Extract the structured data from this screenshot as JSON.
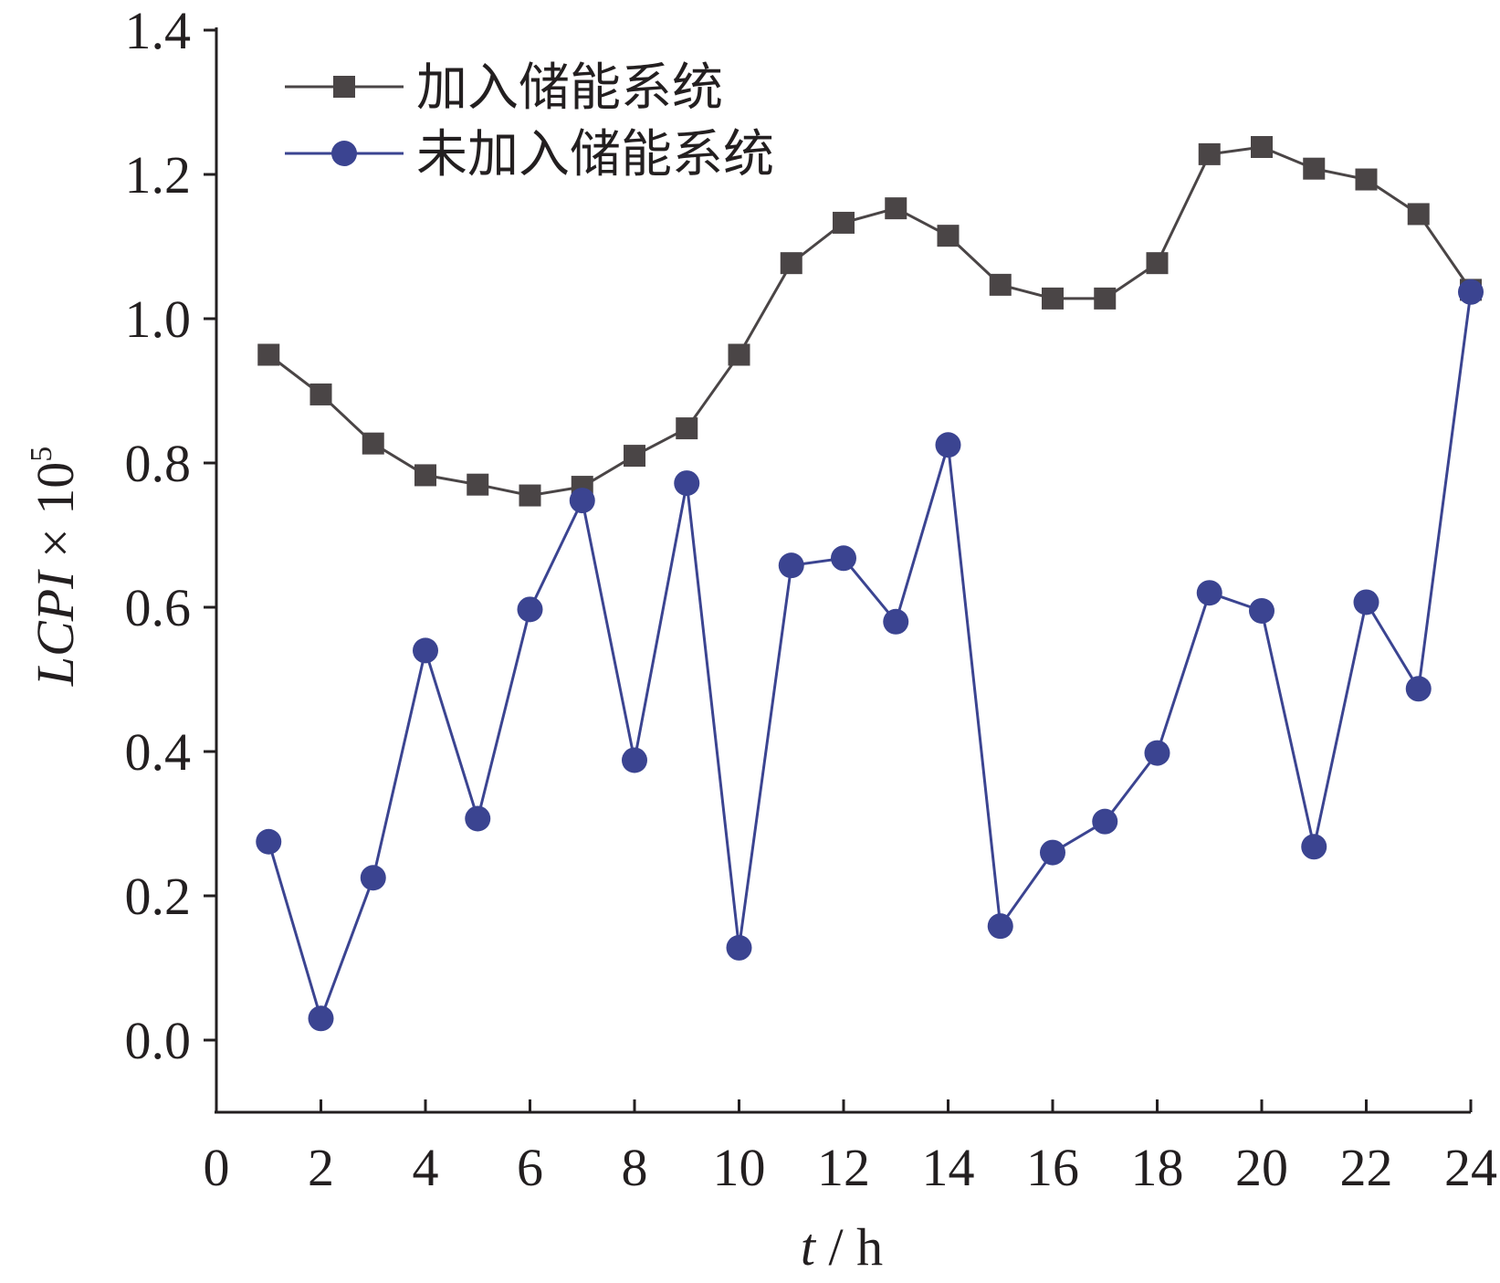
{
  "chart_data": {
    "type": "line",
    "title": "",
    "xlabel": {
      "var": "t",
      "unit": " / h"
    },
    "ylabel": {
      "var": "LCPI",
      "times": " × 10",
      "exp": "5"
    },
    "xlim": [
      0,
      24
    ],
    "ylim": [
      -0.1,
      1.4
    ],
    "xticks": [
      0,
      2,
      4,
      6,
      8,
      10,
      12,
      14,
      16,
      18,
      20,
      22,
      24
    ],
    "xtick_labels": [
      "0",
      "2",
      "4",
      "6",
      "8",
      "10",
      "12",
      "14",
      "16",
      "18",
      "20",
      "22",
      "24"
    ],
    "yticks": [
      0.0,
      0.2,
      0.4,
      0.6,
      0.8,
      1.0,
      1.2,
      1.4
    ],
    "ytick_labels": [
      "0.0",
      "0.2",
      "0.4",
      "0.6",
      "0.8",
      "1.0",
      "1.2",
      "1.4"
    ],
    "grid": false,
    "legend_position": "top-left",
    "x": [
      1,
      2,
      3,
      4,
      5,
      6,
      7,
      8,
      9,
      10,
      11,
      12,
      13,
      14,
      15,
      16,
      17,
      18,
      19,
      20,
      21,
      22,
      23,
      24
    ],
    "series": [
      {
        "name": "加入储能系统",
        "marker": "square",
        "color": "#4a4546",
        "values": [
          0.95,
          0.895,
          0.827,
          0.783,
          0.77,
          0.755,
          0.767,
          0.81,
          0.848,
          0.95,
          1.077,
          1.133,
          1.153,
          1.115,
          1.047,
          1.028,
          1.028,
          1.077,
          1.228,
          1.238,
          1.208,
          1.193,
          1.145,
          1.04
        ]
      },
      {
        "name": "未加入储能系统",
        "marker": "circle",
        "color": "#3b4491",
        "values": [
          0.275,
          0.03,
          0.225,
          0.54,
          0.307,
          0.597,
          0.748,
          0.388,
          0.772,
          0.128,
          0.658,
          0.668,
          0.58,
          0.825,
          0.158,
          0.26,
          0.303,
          0.398,
          0.62,
          0.595,
          0.268,
          0.607,
          0.487,
          1.037
        ]
      }
    ]
  }
}
